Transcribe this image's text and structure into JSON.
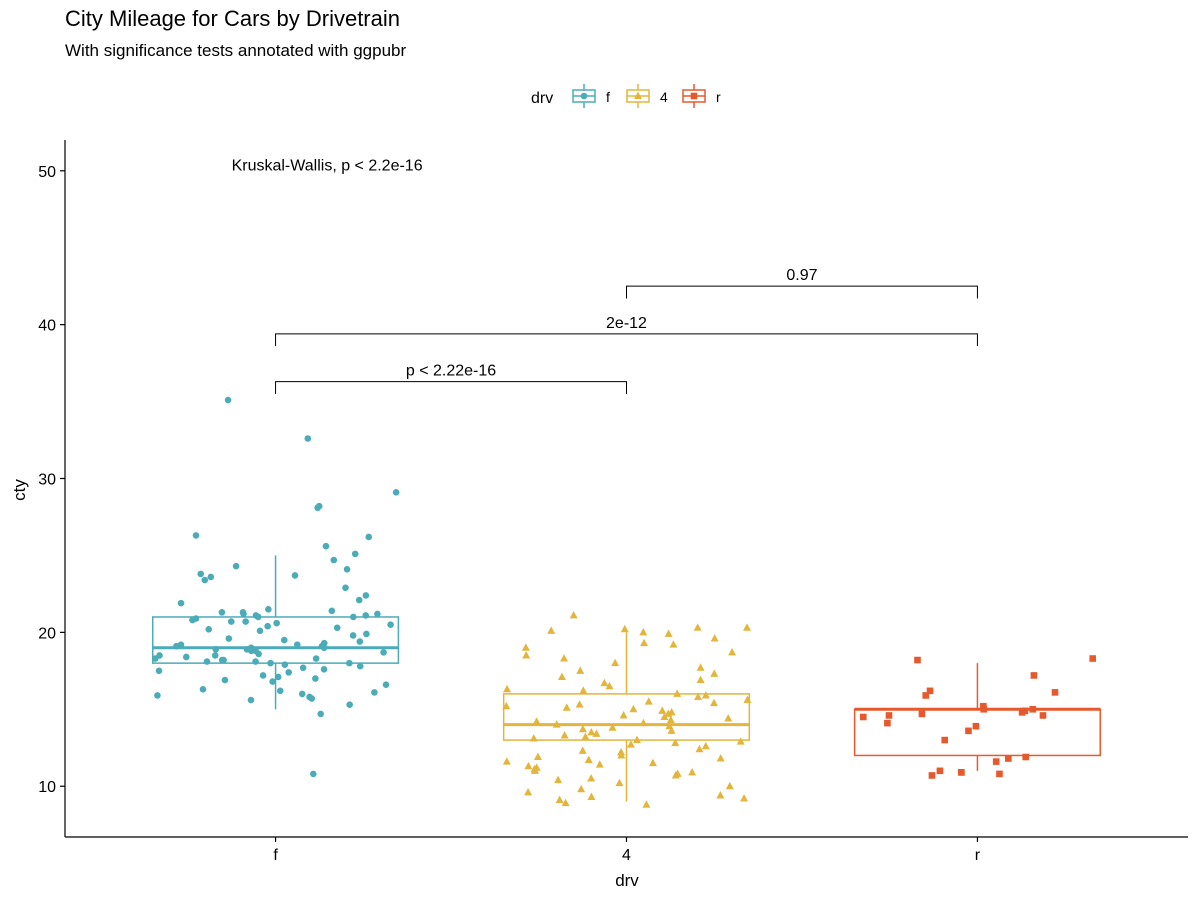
{
  "chart_data": {
    "type": "boxplot",
    "title": "City Mileage for Cars by Drivetrain",
    "subtitle": "With significance tests annotated with ggpubr",
    "xlabel": "drv",
    "ylabel": "cty",
    "ylim": [
      6.7,
      52
    ],
    "yticks": [
      10,
      20,
      30,
      40,
      50
    ],
    "categories": [
      "f",
      "4",
      "r"
    ],
    "legend": {
      "title": "drv",
      "position": "top",
      "entries": [
        "f",
        "4",
        "r"
      ]
    },
    "grid": false,
    "colors": {
      "f": "#4bacb8",
      "4": "#e3b53c",
      "r": "#e6592d"
    },
    "boxes": [
      {
        "category": "f",
        "q1": 18,
        "median": 19,
        "q3": 21,
        "whisker_low": 15,
        "whisker_high": 25,
        "outliers": [
          11,
          33,
          35,
          26,
          26,
          28,
          28,
          29
        ]
      },
      {
        "category": "4",
        "q1": 13,
        "median": 14,
        "q3": 16,
        "whisker_low": 9,
        "whisker_high": 20,
        "outliers": [
          21
        ]
      },
      {
        "category": "r",
        "q1": 12,
        "median": 15,
        "q3": 15,
        "whisker_low": 11,
        "whisker_high": 18,
        "outliers": []
      }
    ],
    "points": [
      {
        "category": "f",
        "values": [
          10.8,
          35.1,
          32.6,
          29.1,
          28.2,
          28.1,
          26.3,
          26.2,
          25.6,
          25.1,
          24.7,
          24.3,
          24.1,
          23.8,
          23.7,
          23.6,
          23.4,
          22.9,
          22.4,
          22.1,
          21.9,
          21.5,
          21.4,
          21.3,
          21.3,
          21.2,
          21.2,
          21.1,
          21.1,
          21.0,
          21.0,
          20.9,
          20.8,
          20.7,
          20.7,
          20.6,
          20.5,
          20.4,
          20.3,
          20.2,
          20.1,
          19.9,
          19.8,
          19.6,
          19.5,
          19.4,
          19.3,
          19.2,
          19.2,
          19.1,
          19.1,
          19.0,
          19.0,
          18.9,
          18.9,
          18.8,
          18.8,
          18.7,
          18.6,
          18.5,
          18.5,
          18.4,
          18.3,
          18.3,
          18.2,
          18.2,
          18.1,
          18.1,
          18.0,
          18.0,
          17.9,
          17.8,
          17.7,
          17.6,
          17.5,
          17.4,
          17.2,
          17.1,
          17.0,
          16.9,
          16.8,
          16.6,
          16.3,
          16.2,
          16.1,
          16.0,
          15.9,
          15.8,
          15.7,
          15.6,
          15.3,
          14.7
        ]
      },
      {
        "category": "4",
        "values": [
          21.1,
          20.3,
          20.3,
          20.2,
          20.1,
          20.0,
          19.9,
          19.6,
          19.3,
          19.2,
          19.0,
          18.7,
          18.5,
          18.3,
          18.0,
          17.7,
          17.5,
          17.3,
          17.1,
          16.9,
          16.7,
          16.5,
          16.3,
          16.2,
          16.0,
          15.9,
          15.8,
          15.6,
          15.5,
          15.4,
          15.3,
          15.2,
          15.1,
          15.0,
          14.9,
          14.8,
          14.7,
          14.6,
          14.5,
          14.4,
          14.3,
          14.2,
          14.1,
          14.0,
          13.9,
          13.8,
          13.7,
          13.6,
          13.5,
          13.4,
          13.3,
          13.2,
          13.1,
          13.0,
          12.9,
          12.8,
          12.7,
          12.6,
          12.4,
          12.3,
          12.2,
          12.0,
          11.9,
          11.8,
          11.7,
          11.6,
          11.5,
          11.4,
          11.3,
          11.2,
          11.1,
          11.0,
          10.9,
          10.8,
          10.7,
          10.5,
          10.4,
          10.2,
          10.0,
          9.8,
          9.6,
          9.4,
          9.3,
          9.2,
          9.1,
          8.9,
          8.8
        ]
      },
      {
        "category": "r",
        "values": [
          18.3,
          18.2,
          17.2,
          16.2,
          16.1,
          15.9,
          15.2,
          15.0,
          15.0,
          14.9,
          14.8,
          14.7,
          14.6,
          14.6,
          14.5,
          14.1,
          13.9,
          13.6,
          13.0,
          11.9,
          11.8,
          11.6,
          11.0,
          10.9,
          10.9,
          10.8,
          10.7
        ]
      }
    ],
    "annotations": [
      {
        "text": "Kruskal-Wallis, p < 2.2e-16",
        "at_category": "f",
        "y": 50.4
      },
      {
        "text": "p < 2.22e-16",
        "from": "f",
        "to": "4",
        "y": 36.3,
        "tip": 0.8
      },
      {
        "text": "2e-12",
        "from": "f",
        "to": "r",
        "y": 39.4,
        "tip": 0.8
      },
      {
        "text": "0.97",
        "from": "4",
        "to": "r",
        "y": 42.5,
        "tip": 0.8
      }
    ]
  }
}
